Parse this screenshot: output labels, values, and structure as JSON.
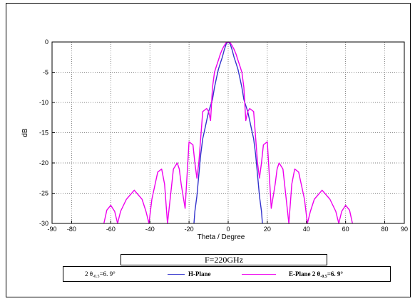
{
  "chart_data": {
    "type": "line",
    "title": "",
    "xlabel": "Theta / Degree",
    "ylabel": "dB",
    "xlim": [
      -90,
      90
    ],
    "ylim": [
      -30,
      0
    ],
    "x_ticks": [
      -90,
      -80,
      -60,
      -40,
      -20,
      0,
      20,
      40,
      60,
      80,
      90
    ],
    "x_tick_labels": [
      "-90",
      "-80",
      "-60",
      "-40",
      "-20",
      "0",
      "20",
      "40",
      "60",
      "80",
      "90"
    ],
    "y_ticks": [
      0,
      -5,
      -10,
      -15,
      -20,
      -25,
      -30
    ],
    "y_tick_labels": [
      "0",
      "-5",
      "-10",
      "-15",
      "-20",
      "-25",
      "-30"
    ],
    "grid": true,
    "series": [
      {
        "name": "H-Plane",
        "color": "#3333cc",
        "x": [
          -17.5,
          -17,
          -16,
          -15,
          -14,
          -13,
          -12,
          -11,
          -10,
          -9,
          -8,
          -7,
          -6,
          -5,
          -4,
          -3,
          -2,
          -1,
          0,
          1,
          2,
          3,
          4,
          5,
          6,
          7,
          8,
          9,
          10,
          11,
          12,
          13,
          14,
          15,
          16,
          17,
          17.5
        ],
        "y": [
          -30,
          -28,
          -25.5,
          -22,
          -18.5,
          -16,
          -14.5,
          -13,
          -11.5,
          -10.5,
          -9.5,
          -7.5,
          -6,
          -4.5,
          -3.5,
          -2.5,
          -1.3,
          -0.3,
          0,
          -0.3,
          -1.3,
          -2.5,
          -3.5,
          -4.5,
          -6,
          -7.5,
          -9.5,
          -10.5,
          -11.5,
          -13,
          -14.5,
          -16,
          -18.5,
          -22,
          -25.5,
          -28,
          -30
        ]
      },
      {
        "name": "E-Plane",
        "color": "#ee00ee",
        "x": [
          -63.5,
          -62,
          -60,
          -58,
          -56.5,
          -55,
          -52,
          -48,
          -44,
          -42,
          -40.5,
          -39,
          -36,
          -34,
          -32.5,
          -31,
          -28,
          -26,
          -25,
          -24,
          -22,
          -20,
          -18,
          -17,
          -16,
          -15,
          -13,
          -11,
          -10,
          -9,
          -8,
          -7,
          -6,
          -5,
          -4,
          -3,
          -2,
          -1,
          0,
          1,
          2,
          3,
          4,
          5,
          6,
          7,
          8,
          9,
          10,
          11,
          13,
          15,
          16,
          17,
          18,
          20,
          22,
          24,
          25,
          26,
          28,
          31,
          32.5,
          34,
          36,
          39,
          40.5,
          42,
          44,
          48,
          52,
          55,
          56.5,
          58,
          60,
          62,
          63.5
        ],
        "y": [
          -30,
          -27.8,
          -27,
          -28,
          -30,
          -28,
          -26,
          -24.5,
          -26,
          -28,
          -30,
          -26,
          -21.5,
          -21,
          -23.5,
          -30,
          -21,
          -20,
          -21,
          -23.5,
          -27.5,
          -16.5,
          -17,
          -20,
          -22.5,
          -20,
          -11.5,
          -11,
          -11.5,
          -13,
          -7.5,
          -5,
          -4,
          -3,
          -2,
          -1.2,
          -0.6,
          -0.1,
          0,
          -0.1,
          -0.6,
          -1.2,
          -2,
          -3,
          -4,
          -5,
          -7.5,
          -13,
          -11.5,
          -11,
          -11.5,
          -20,
          -22.5,
          -20,
          -17,
          -16.5,
          -27.5,
          -23.5,
          -21,
          -20,
          -21,
          -30,
          -23.5,
          -21,
          -21.5,
          -26,
          -30,
          -28,
          -26,
          -24.5,
          -26,
          -28,
          -30,
          -28,
          -27,
          -27.8,
          -30
        ]
      }
    ]
  },
  "annotations": {
    "frequency_label": "F=220GHz"
  },
  "legend": {
    "h_prefix": "2 θ",
    "h_sub": "-0.5",
    "h_value": "=6. 9°",
    "h_name": "H-Plane",
    "e_name": "E-Plane 2 θ",
    "e_sub": "-0.5",
    "e_value": "=6. 9°"
  }
}
